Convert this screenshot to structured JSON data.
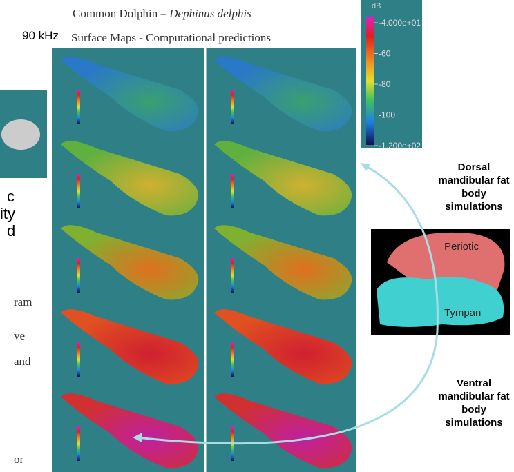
{
  "header": {
    "frequency": "90 kHz",
    "title": "Common Dolphin –",
    "species": "Dephinus delphis",
    "subtitle": "Surface Maps - Computational predictions"
  },
  "colorbar": {
    "unit": "dB",
    "labels": [
      "-4.000e+01",
      "-60",
      "-80",
      "-100",
      "-1.200e+02"
    ]
  },
  "dorsal_label": [
    "Dorsal",
    "mandibular fat",
    "body",
    "simulations"
  ],
  "ventral_label": [
    "Ventral",
    "mandibular fat",
    "body",
    "simulations"
  ],
  "skull": {
    "upper": "Periotic",
    "lower": "Tympan"
  },
  "left_fragments": {
    "heading": [
      "c",
      "ity",
      "d"
    ],
    "body": [
      "ram",
      "ve",
      "and",
      "or"
    ]
  }
}
